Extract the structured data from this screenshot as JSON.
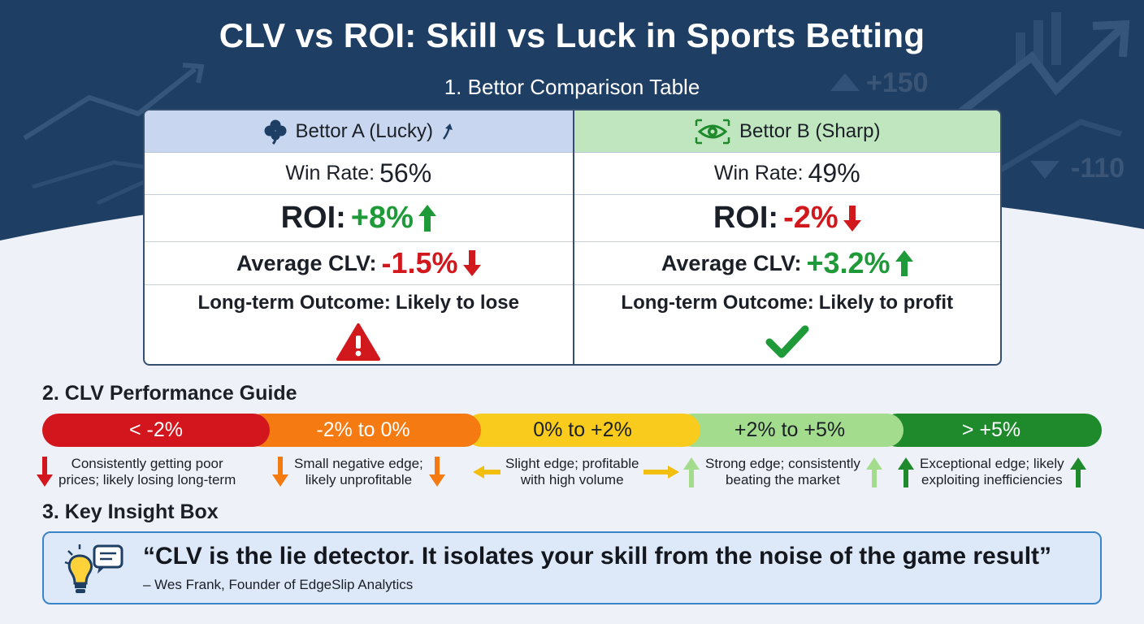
{
  "title": "CLV vs ROI: Skill vs Luck in Sports Betting",
  "section1": "1. Bettor Comparison Table",
  "background_numbers": {
    "up": "+150",
    "down": "-110"
  },
  "bettors": [
    {
      "name": "Bettor A (Lucky)",
      "icon": "clover-icon",
      "win_rate_label": "Win Rate:",
      "win_rate": "56%",
      "roi_label": "ROI:",
      "roi": "+8%",
      "clv_label": "Average CLV:",
      "clv": "-1.5%",
      "outcome_label": "Long-term Outcome:",
      "outcome": "Likely to lose"
    },
    {
      "name": "Bettor B (Sharp)",
      "icon": "eye-icon",
      "win_rate_label": "Win Rate:",
      "win_rate": "49%",
      "roi_label": "ROI:",
      "roi": "-2%",
      "clv_label": "Average CLV:",
      "clv": "+3.2%",
      "outcome_label": "Long-term Outcome:",
      "outcome": "Likely to profit"
    }
  ],
  "section2": "2. CLV Performance Guide",
  "guide": [
    {
      "range": "< -2%",
      "color": "#d3161e",
      "desc1": "Consistently getting poor",
      "desc2": "prices; likely losing long-term"
    },
    {
      "range": "-2% to 0%",
      "color": "#f57a12",
      "desc1": "Small negative edge;",
      "desc2": "likely unprofitable"
    },
    {
      "range": "0% to +2%",
      "color": "#f8cb1c",
      "desc1": "Slight edge; profitable",
      "desc2": "with high volume"
    },
    {
      "range": "+2% to +5%",
      "color": "#a3dc8c",
      "desc1": "Strong edge; consistently",
      "desc2": "beating the market"
    },
    {
      "range": "> +5%",
      "color": "#1e8a2c",
      "desc1": "Exceptional edge; likely",
      "desc2": "exploiting inefficiencies"
    }
  ],
  "section3": "3. Key Insight Box",
  "insight": {
    "quote": "“CLV is the lie detector. It isolates your skill from the noise of the game result”",
    "attribution": "– Wes Frank, Founder of EdgeSlip Analytics"
  },
  "colors": {
    "navy": "#1f3e63",
    "green": "#1f9a38",
    "red": "#d0181d",
    "accent": "#3c84c8"
  }
}
